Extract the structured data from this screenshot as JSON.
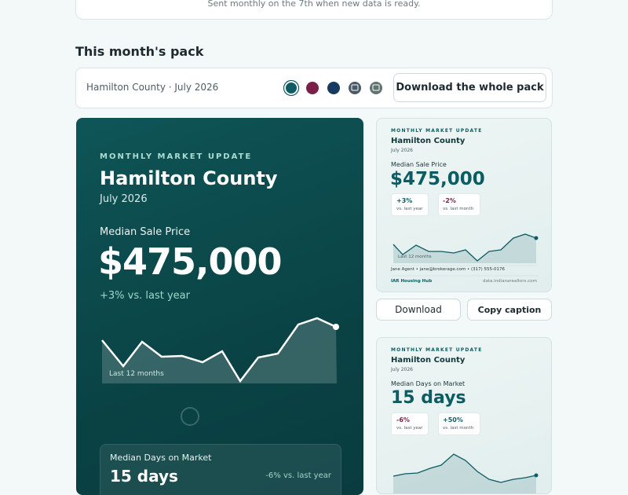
{
  "intro": {
    "note": "Sent monthly on the 7th when new data is ready."
  },
  "pack": {
    "heading": "This month's pack",
    "toolbar": {
      "label": "Hamilton County · July 2026",
      "button": "Download the whole pack",
      "swatches": [
        {
          "color": "#0d5c63"
        },
        {
          "color": "#7a1f4a"
        },
        {
          "color": "#173a63"
        },
        {
          "color": "#4b5b66"
        },
        {
          "color": "#5f7470"
        }
      ]
    },
    "preview": {
      "eyebrow": "MONTHLY MARKET UPDATE",
      "title": "Hamilton County",
      "date": "July 2026",
      "metric": "Median Sale Price",
      "value": "$475,000",
      "change": "+3% vs. last year",
      "chart_label": "Last 12 months",
      "second": {
        "metric": "Median Days on Market",
        "value": "15 days",
        "change": "-6% vs. last year"
      }
    },
    "cards": [
      {
        "eyebrow": "MONTHLY MARKET UPDATE",
        "title": "Hamilton County",
        "date": "July 2026",
        "metric": "Median Sale Price",
        "value": "$475,000",
        "chips": [
          {
            "value": "+3%",
            "label": "vs. last year"
          },
          {
            "value": "-2%",
            "label": "vs. last month"
          }
        ],
        "chart_label": "Last 12 months",
        "contact": "Jane Agent • jane@brokerage.com • (317) 555-0176",
        "brand": "IAR Housing Hub",
        "source": "data.indianarealtors.com",
        "buttons": [
          "Download",
          "Copy caption"
        ]
      },
      {
        "eyebrow": "MONTHLY MARKET UPDATE",
        "title": "Hamilton County",
        "date": "July 2026",
        "metric": "Median Days on Market",
        "value": "15 days",
        "chips": [
          {
            "value": "-6%",
            "label": "vs. last year"
          },
          {
            "value": "+50%",
            "label": "vs. last month"
          }
        ]
      }
    ]
  }
}
